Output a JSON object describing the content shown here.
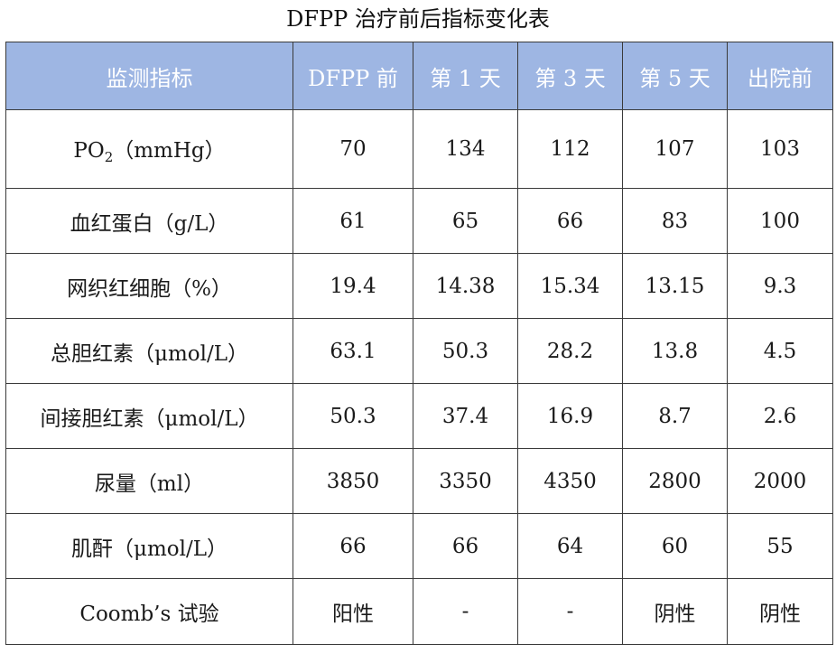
{
  "title": "DFPP 治疗前后指标变化表",
  "header": {
    "indicator": "监测指标",
    "col1": "DFPP 前",
    "col2": "第 1 天",
    "col3": "第 3 天",
    "col4": "第 5 天",
    "col5": "出院前"
  },
  "rows": [
    {
      "label_prefix": "PO",
      "label_sub": "2",
      "label_suffix": "（mmHg）",
      "values": [
        "70",
        "134",
        "112",
        "107",
        "103"
      ]
    },
    {
      "label": "血红蛋白（g/L）",
      "values": [
        "61",
        "65",
        "66",
        "83",
        "100"
      ]
    },
    {
      "label": "网织红细胞（%）",
      "values": [
        "19.4",
        "14.38",
        "15.34",
        "13.15",
        "9.3"
      ]
    },
    {
      "label": "总胆红素（μmol/L）",
      "values": [
        "63.1",
        "50.3",
        "28.2",
        "13.8",
        "4.5"
      ]
    },
    {
      "label": "间接胆红素（μmol/L）",
      "values": [
        "50.3",
        "37.4",
        "16.9",
        "8.7",
        "2.6"
      ]
    },
    {
      "label": "尿量（ml）",
      "values": [
        "3850",
        "3350",
        "4350",
        "2800",
        "2000"
      ]
    },
    {
      "label": "肌酐（μmol/L）",
      "values": [
        "66",
        "66",
        "64",
        "60",
        "55"
      ]
    },
    {
      "label": "Coomb’s 试验",
      "values": [
        "阳性",
        "-",
        "-",
        "阴性",
        "阴性"
      ]
    }
  ],
  "colors": {
    "header_bg": "#9eb6e3",
    "header_text": "#ffffff",
    "border": "#3a3a3a"
  }
}
